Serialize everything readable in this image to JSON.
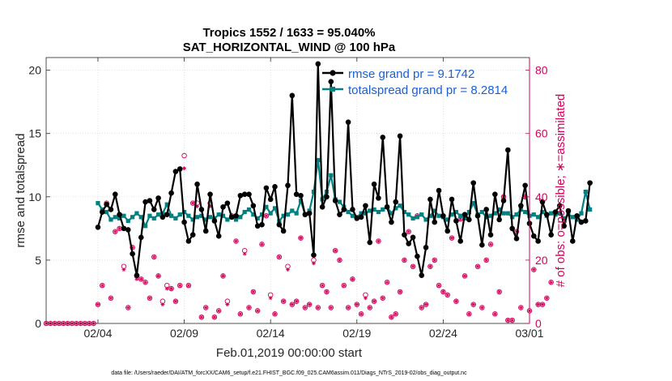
{
  "chart_data": {
    "type": "line",
    "title_line1": "Tropics 1552 / 1633 = 95.040%",
    "title_line2": "SAT_HORIZONTAL_WIND @ 100 hPa",
    "xlabel": "Feb.01,2019 00:00:00 start",
    "ylabel_left": "rmse and totalspread",
    "ylabel_right": "# of obs: o=possible; ∗=assimilated",
    "footnote": "data file: /Users/raeder/DAI/ATM_forcXX/CAM6_setup/f.e21.FHIST_BGC.f09_025.CAM6assim.011/Diags_NTrS_2019-02/obs_diag_output.nc",
    "x_range_days": [
      1,
      29
    ],
    "x_ticks": [
      {
        "day": 4,
        "label": "02/04"
      },
      {
        "day": 9,
        "label": "02/09"
      },
      {
        "day": 14,
        "label": "02/14"
      },
      {
        "day": 19,
        "label": "02/19"
      },
      {
        "day": 24,
        "label": "02/24"
      },
      {
        "day": 29,
        "label": "03/01"
      }
    ],
    "ylim_left": [
      0,
      21
    ],
    "yticks_left": [
      "0",
      "5",
      "10",
      "15",
      "20"
    ],
    "ylim_right": [
      0,
      84
    ],
    "yticks_right": [
      "0",
      "20",
      "40",
      "60",
      "80"
    ],
    "x_start_day": 1,
    "x_step_days": 0.25,
    "series": [
      {
        "name": "rmse grand pr = 9.1742",
        "color": "#000000",
        "start_index": 12,
        "values": [
          7.6,
          8.8,
          9.4,
          9.0,
          10.2,
          8.6,
          7.5,
          7.4,
          5.5,
          3.8,
          6.8,
          9.6,
          9.7,
          9.0,
          9.9,
          8.4,
          8.6,
          10.3,
          12.0,
          12.2,
          8.0,
          6.5,
          7.0,
          11.0,
          9.0,
          7.3,
          10.2,
          8.1,
          6.9,
          9.2,
          9.5,
          8.4,
          8.5,
          10.1,
          10.2,
          10.2,
          9.3,
          7.7,
          7.8,
          10.7,
          9.8,
          10.8,
          7.8,
          7.3,
          10.9,
          18.0,
          10.2,
          10.1,
          8.6,
          8.7,
          5.4,
          20.5,
          9.2,
          10.0,
          19.1,
          9.7,
          8.6,
          9.0,
          15.9,
          9.0,
          8.3,
          8.4,
          9.3,
          6.4,
          11.0,
          9.9,
          14.7,
          9.2,
          8.0,
          9.6,
          14.8,
          7.0,
          6.3,
          6.8,
          5.3,
          3.8,
          6.0,
          9.8,
          8.0,
          10.5,
          8.5,
          7.3,
          9.8,
          8.1,
          6.5,
          8.6,
          8.2,
          11.1,
          8.5,
          6.2,
          9.0,
          7.0,
          10.2,
          8.2,
          9.7,
          13.7,
          7.5,
          6.7,
          9.3,
          10.9,
          7.9,
          6.9,
          6.5,
          9.6,
          8.6,
          7.0,
          8.8,
          9.3,
          7.7,
          8.9,
          6.5,
          8.5,
          8.0,
          8.1,
          11.1
        ]
      },
      {
        "name": "totalspread grand pr = 8.2814",
        "color": "#008080",
        "start_index": 12,
        "values": [
          9.5,
          9.0,
          8.8,
          8.2,
          8.4,
          8.3,
          8.5,
          8.1,
          8.4,
          8.7,
          8.4,
          7.7,
          8.5,
          8.3,
          8.6,
          8.7,
          9.4,
          8.5,
          8.3,
          8.6,
          8.8,
          8.5,
          8.2,
          8.4,
          8.5,
          8.2,
          8.4,
          8.3,
          8.6,
          8.5,
          8.2,
          8.4,
          8.2,
          8.4,
          8.8,
          9.0,
          8.6,
          8.3,
          8.6,
          9.2,
          8.7,
          9.1,
          8.1,
          8.5,
          8.6,
          8.9,
          8.7,
          9.7,
          8.6,
          8.9,
          10.4,
          12.9,
          9.8,
          10.4,
          11.7,
          9.8,
          9.6,
          9.2,
          8.8,
          8.5,
          8.4,
          8.7,
          8.7,
          8.9,
          9.0,
          8.8,
          9.0,
          9.2,
          8.7,
          9.1,
          9.3,
          8.8,
          8.6,
          8.3,
          8.4,
          8.6,
          8.2,
          8.5,
          8.9,
          8.5,
          8.4,
          8.2,
          8.6,
          8.8,
          8.5,
          8.3,
          8.8,
          9.5,
          8.6,
          8.8,
          8.4,
          8.5,
          8.7,
          9.0,
          8.7,
          8.7,
          8.4,
          8.6,
          9.0,
          8.8,
          8.5,
          8.6,
          8.4,
          8.8,
          8.5,
          8.7,
          8.6,
          8.7,
          8.3,
          8.6,
          8.4,
          8.2,
          8.7,
          10.4,
          9.0
        ]
      },
      {
        "name": "possible",
        "axis": "right",
        "marker": "o",
        "color": "#d6005a",
        "start_index": 0,
        "values": [
          0,
          0,
          0,
          0,
          0,
          0,
          0,
          0,
          0,
          0,
          0,
          0,
          6,
          12,
          38,
          8,
          29,
          30,
          18,
          5,
          24,
          15,
          14,
          13,
          8,
          21,
          15,
          7,
          12,
          11,
          7,
          12,
          53,
          12,
          38,
          38,
          2,
          5,
          38,
          2,
          4,
          15,
          7,
          34,
          26,
          3,
          23,
          5,
          10,
          4,
          25,
          34,
          9,
          3,
          21,
          7,
          18,
          6,
          7,
          27,
          5,
          6,
          20,
          5,
          12,
          10,
          5,
          23,
          20,
          12,
          5,
          14,
          6,
          3,
          9,
          5,
          7,
          26,
          8,
          13,
          2,
          3,
          10,
          20,
          29,
          18,
          34,
          5,
          6,
          18,
          20,
          12,
          10,
          9,
          27,
          7,
          33,
          15,
          3,
          6,
          18,
          5,
          20,
          25,
          3,
          10,
          40,
          1,
          1,
          29,
          5,
          40,
          4,
          17,
          6,
          6,
          8,
          13
        ]
      },
      {
        "name": "assimilated",
        "axis": "right",
        "marker": "*",
        "color": "#d6005a",
        "start_index": 0,
        "values": [
          0,
          0,
          0,
          0,
          0,
          0,
          0,
          0,
          0,
          0,
          0,
          0,
          6,
          12,
          38,
          8,
          29,
          30,
          17,
          5,
          24,
          14,
          14,
          13,
          8,
          21,
          15,
          6,
          11,
          11,
          7,
          12,
          49,
          12,
          38,
          37,
          2,
          5,
          37,
          2,
          4,
          15,
          6,
          34,
          26,
          3,
          22,
          5,
          10,
          4,
          25,
          34,
          8,
          3,
          21,
          7,
          17,
          6,
          7,
          27,
          5,
          6,
          19,
          5,
          12,
          10,
          5,
          23,
          20,
          12,
          5,
          14,
          6,
          3,
          8,
          5,
          7,
          26,
          8,
          13,
          2,
          3,
          10,
          20,
          29,
          18,
          34,
          5,
          6,
          18,
          20,
          12,
          10,
          9,
          27,
          7,
          33,
          15,
          3,
          6,
          18,
          5,
          20,
          25,
          3,
          10,
          40,
          1,
          1,
          29,
          5,
          40,
          4,
          17,
          6,
          6,
          8,
          13
        ]
      }
    ]
  }
}
